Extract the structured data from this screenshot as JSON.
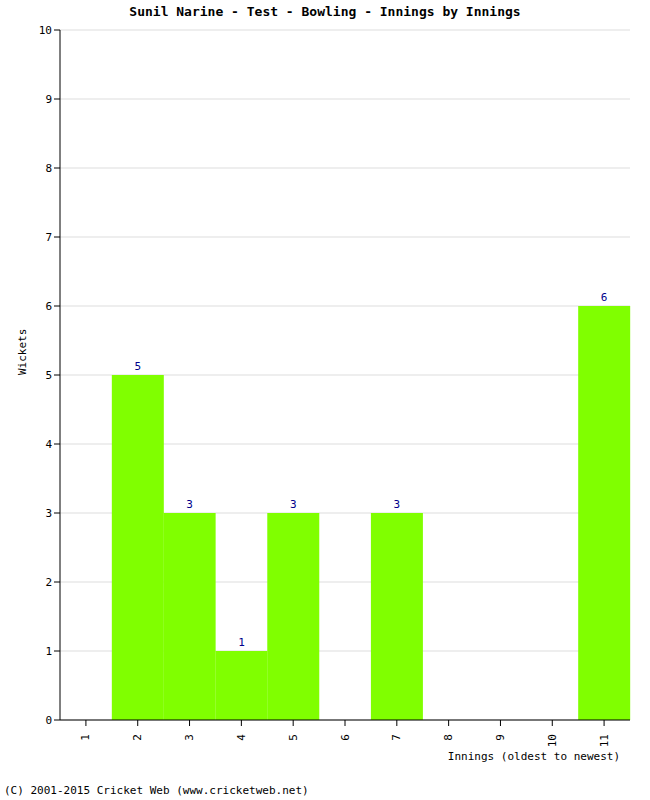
{
  "chart_data": {
    "type": "bar",
    "title": "Sunil Narine - Test - Bowling - Innings by Innings",
    "x_label": "Innings (oldest to newest)",
    "y_label": "Wickets",
    "footer": "(C) 2001-2015 Cricket Web (www.cricketweb.net)",
    "categories": [
      "1",
      "2",
      "3",
      "4",
      "5",
      "6",
      "7",
      "8",
      "9",
      "10",
      "11"
    ],
    "values": [
      0,
      5,
      3,
      1,
      3,
      0,
      3,
      0,
      0,
      0,
      6
    ],
    "color": "#80ff00",
    "ylim": [
      0,
      10
    ],
    "yticks": [
      0,
      1,
      2,
      3,
      4,
      5,
      6,
      7,
      8,
      9,
      10
    ],
    "grid": true,
    "data_labels": true
  }
}
